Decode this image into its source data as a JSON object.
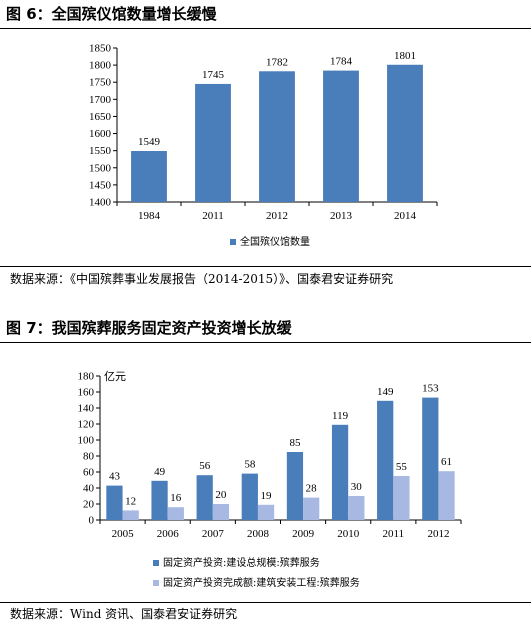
{
  "figure6": {
    "title": "图 6：全国殡仪馆数量增长缓慢",
    "source": "数据来源：《中国殡葬事业发展报告（2014-2015）》、国泰君安证券研究"
  },
  "figure7": {
    "title": "图 7：我国殡葬服务固定资产投资增长放缓",
    "source": "数据来源：Wind 资讯、国泰君安证券研究"
  },
  "chart_data": [
    {
      "type": "bar",
      "categories": [
        "1984",
        "2011",
        "2012",
        "2013",
        "2014"
      ],
      "series": [
        {
          "name": "全国殡仪馆数量",
          "values": [
            1549,
            1745,
            1782,
            1784,
            1801
          ],
          "color": "#4a7ebb"
        }
      ],
      "ylim": [
        1400,
        1850
      ],
      "yticks": [
        1400,
        1450,
        1500,
        1550,
        1600,
        1650,
        1700,
        1750,
        1800,
        1850
      ],
      "ylabel": "",
      "legend": "bottom",
      "grid": false
    },
    {
      "type": "bar",
      "categories": [
        "2005",
        "2006",
        "2007",
        "2008",
        "2009",
        "2010",
        "2011",
        "2012"
      ],
      "series": [
        {
          "name": "固定资产投资:建设总规模:殡葬服务",
          "values": [
            43,
            49,
            56,
            58,
            85,
            119,
            149,
            153
          ],
          "color": "#4a7ebb"
        },
        {
          "name": "固定资产投资完成额:建筑安装工程:殡葬服务",
          "values": [
            12,
            16,
            20,
            19,
            28,
            30,
            55,
            61
          ],
          "color": "#a7b9e2"
        }
      ],
      "ylim": [
        0,
        180
      ],
      "yticks": [
        0,
        20,
        40,
        60,
        80,
        100,
        120,
        140,
        160,
        180
      ],
      "ylabel": "亿元",
      "legend": "bottom",
      "grid": false
    }
  ]
}
